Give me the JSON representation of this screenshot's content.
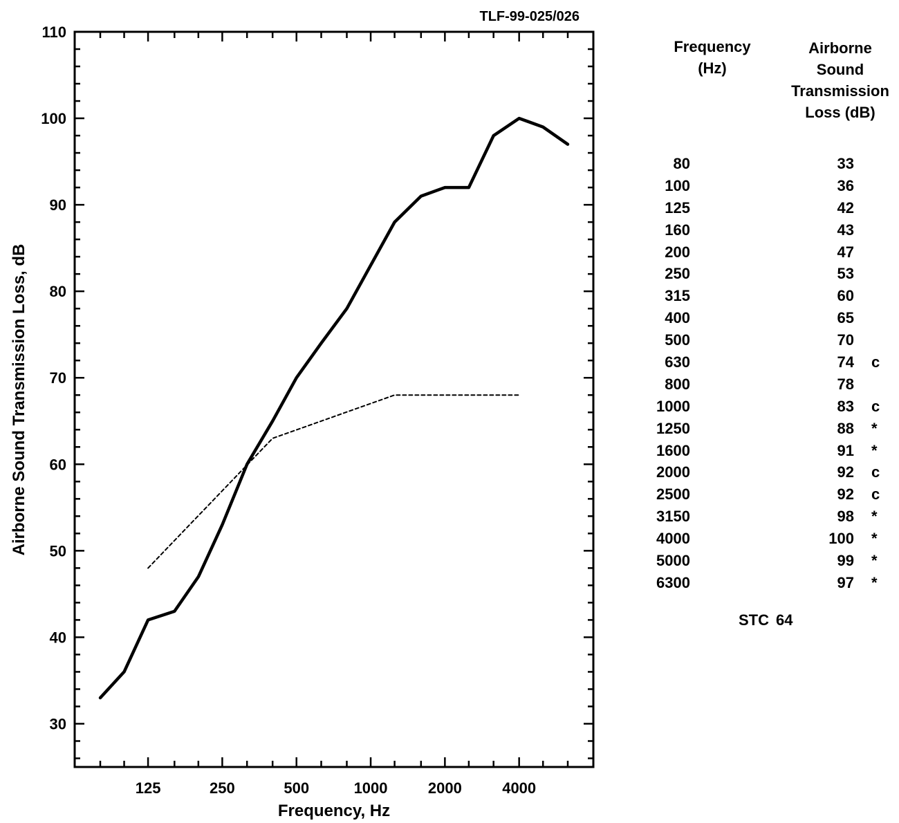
{
  "figure_id": "TLF-99-025/026",
  "chart_data": {
    "type": "line",
    "xlabel": "Frequency, Hz",
    "ylabel": "Airborne Sound Transmission Loss, dB",
    "x_scale": "log",
    "xlim": [
      63,
      8000
    ],
    "ylim": [
      25,
      110
    ],
    "y_ticks": [
      30,
      40,
      50,
      60,
      70,
      80,
      90,
      100,
      110
    ],
    "x_ticks": [
      125,
      250,
      500,
      1000,
      2000,
      4000
    ],
    "x": [
      80,
      100,
      125,
      160,
      200,
      250,
      315,
      400,
      500,
      630,
      800,
      1000,
      1250,
      1600,
      2000,
      2500,
      3150,
      4000,
      5000,
      6300
    ],
    "series": [
      {
        "style": "solid",
        "values": [
          33,
          36,
          42,
          43,
          47,
          53,
          60,
          65,
          70,
          74,
          78,
          83,
          88,
          91,
          92,
          92,
          98,
          100,
          99,
          97
        ]
      },
      {
        "style": "dashed",
        "x": [
          125,
          400,
          1250,
          4000
        ],
        "values": [
          48,
          63,
          68,
          68
        ]
      }
    ]
  },
  "table": {
    "header_frequency": [
      "Frequency",
      "(Hz)"
    ],
    "header_tl": [
      "Airborne",
      "Sound",
      "Transmission",
      "Loss (dB)"
    ],
    "rows": [
      {
        "f": "80",
        "tl": "33",
        "flag": ""
      },
      {
        "f": "100",
        "tl": "36",
        "flag": ""
      },
      {
        "f": "125",
        "tl": "42",
        "flag": ""
      },
      {
        "f": "160",
        "tl": "43",
        "flag": ""
      },
      {
        "f": "200",
        "tl": "47",
        "flag": ""
      },
      {
        "f": "250",
        "tl": "53",
        "flag": ""
      },
      {
        "f": "315",
        "tl": "60",
        "flag": ""
      },
      {
        "f": "400",
        "tl": "65",
        "flag": ""
      },
      {
        "f": "500",
        "tl": "70",
        "flag": ""
      },
      {
        "f": "630",
        "tl": "74",
        "flag": "c"
      },
      {
        "f": "800",
        "tl": "78",
        "flag": ""
      },
      {
        "f": "1000",
        "tl": "83",
        "flag": "c"
      },
      {
        "f": "1250",
        "tl": "88",
        "flag": "*"
      },
      {
        "f": "1600",
        "tl": "91",
        "flag": "*"
      },
      {
        "f": "2000",
        "tl": "92",
        "flag": "c"
      },
      {
        "f": "2500",
        "tl": "92",
        "flag": "c"
      },
      {
        "f": "3150",
        "tl": "98",
        "flag": "*"
      },
      {
        "f": "4000",
        "tl": "100",
        "flag": "*"
      },
      {
        "f": "5000",
        "tl": "99",
        "flag": "*"
      },
      {
        "f": "6300",
        "tl": "97",
        "flag": "*"
      }
    ],
    "stc_label": "STC",
    "stc_value": "64"
  }
}
